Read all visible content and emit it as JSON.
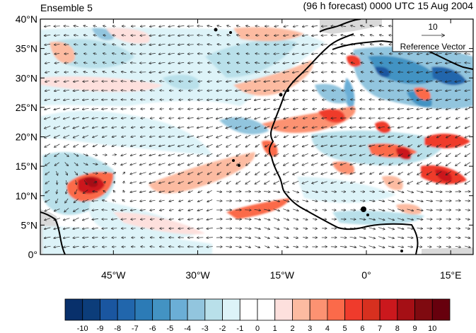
{
  "title_left": "Ensemble 5",
  "title_right": "(96 h forecast) 0000 UTC 15 Aug 2004",
  "reference_vector": {
    "magnitude": "10",
    "label": "Reference Vector"
  },
  "y_axis": {
    "ticks": [
      "40°N",
      "35°N",
      "30°N",
      "25°N",
      "20°N",
      "15°N",
      "10°N",
      "5°N",
      "0°"
    ],
    "values": [
      40,
      35,
      30,
      25,
      20,
      15,
      10,
      5,
      0
    ]
  },
  "x_axis": {
    "ticks": [
      "45°W",
      "30°W",
      "15°W",
      "0°",
      "15°E"
    ],
    "values": [
      -45,
      -30,
      -15,
      0,
      15
    ]
  },
  "map_extent": {
    "lon": [
      -58,
      19
    ],
    "lat": [
      0,
      40
    ]
  },
  "colorbar": {
    "labels": [
      "-10",
      "-9",
      "-8",
      "-7",
      "-6",
      "-5",
      "-4",
      "-3",
      "-2",
      "-1",
      "0",
      "1",
      "2",
      "3",
      "4",
      "5",
      "6",
      "7",
      "8",
      "9",
      "10"
    ],
    "colors": [
      "#08306b",
      "#0c3d7a",
      "#1a56a0",
      "#2166ac",
      "#2c7bb6",
      "#4393c3",
      "#6baed6",
      "#92c5de",
      "#b9e0ea",
      "#ddf3f8",
      "#ffffff",
      "#ffffff",
      "#fde0dd",
      "#fcbba1",
      "#fc9272",
      "#fb6a4a",
      "#ef3b2c",
      "#d7301f",
      "#cb181d",
      "#a50f15",
      "#7f0a10",
      "#67000d"
    ]
  },
  "colors": {
    "land_fill": "#d9d9d9",
    "coast": "#000000",
    "vector": "#222222"
  }
}
